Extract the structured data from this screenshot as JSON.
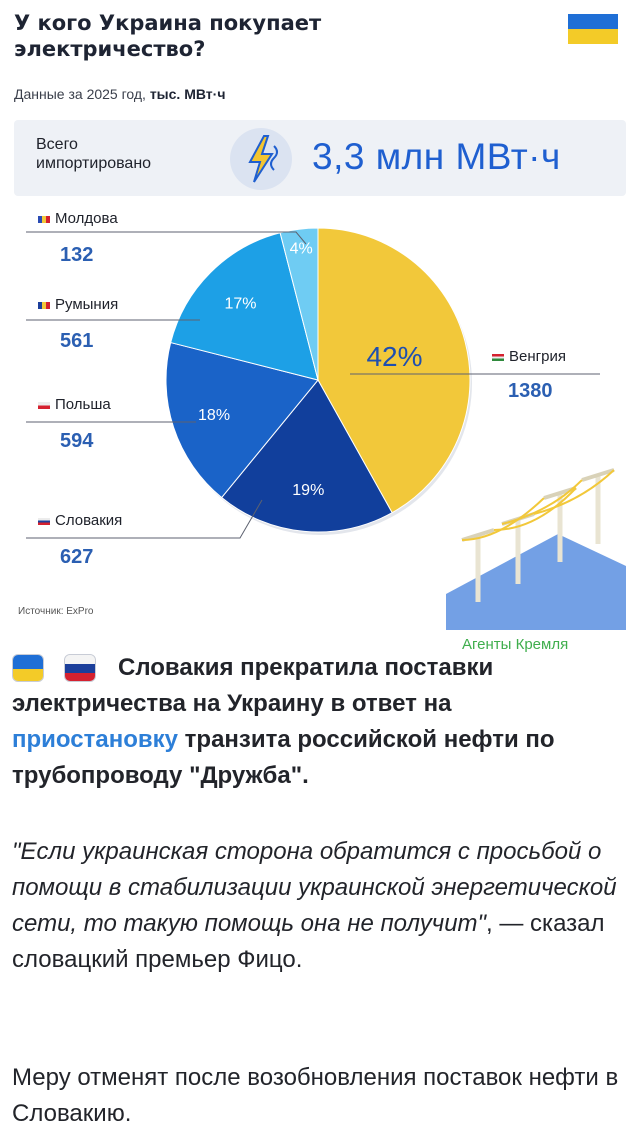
{
  "header": {
    "title_line1": "У кого Украина покупает",
    "title_line2": "электричество?",
    "subtitle_prefix": "Данные за 2025 год,",
    "subtitle_unit": "тыс. МВт·ч"
  },
  "total": {
    "label_line1": "Всего",
    "label_line2": "импортировано",
    "value": "3,3 млн МВт·ч"
  },
  "source": "Источник: ExPro",
  "watermark": "Агенты Кремля",
  "colors": {
    "accent": "#1f5fd0",
    "hungary": "#f2c83a",
    "slovakia": "#113f9c",
    "poland": "#1a63c8",
    "romania": "#1da0e6",
    "moldova": "#6fccf3"
  },
  "chart_data": {
    "type": "pie",
    "title": "У кого Украина покупает электричество?",
    "unit": "тыс. МВт·ч",
    "slices": [
      {
        "label": "Венгрия",
        "value": 1380,
        "percent": "42%",
        "color": "#f2c83a"
      },
      {
        "label": "Словакия",
        "value": 627,
        "percent": "19%",
        "color": "#113f9c"
      },
      {
        "label": "Польша",
        "value": 594,
        "percent": "18%",
        "color": "#1a63c8"
      },
      {
        "label": "Румыния",
        "value": 561,
        "percent": "17%",
        "color": "#1da0e6"
      },
      {
        "label": "Молдова",
        "value": 132,
        "percent": "4%",
        "color": "#6fccf3"
      }
    ]
  },
  "article": {
    "p1_before_link": "Словакия прекратила поставки электричества на Украину в ответ на ",
    "p1_link": "приостановку",
    "p1_after_link": " транзита российской нефти по трубопроводу \"Дружба\".",
    "quote_italic": "\"Если украинская сторона обратится с просьбой о помощи в стабилизации украинской энергетической сети, то такую помощь она не получит\"",
    "quote_tail": ", — сказал словацкий премьер Фицо.",
    "p2": "Меру отменят после возобновления поставок нефти в Словакию."
  }
}
